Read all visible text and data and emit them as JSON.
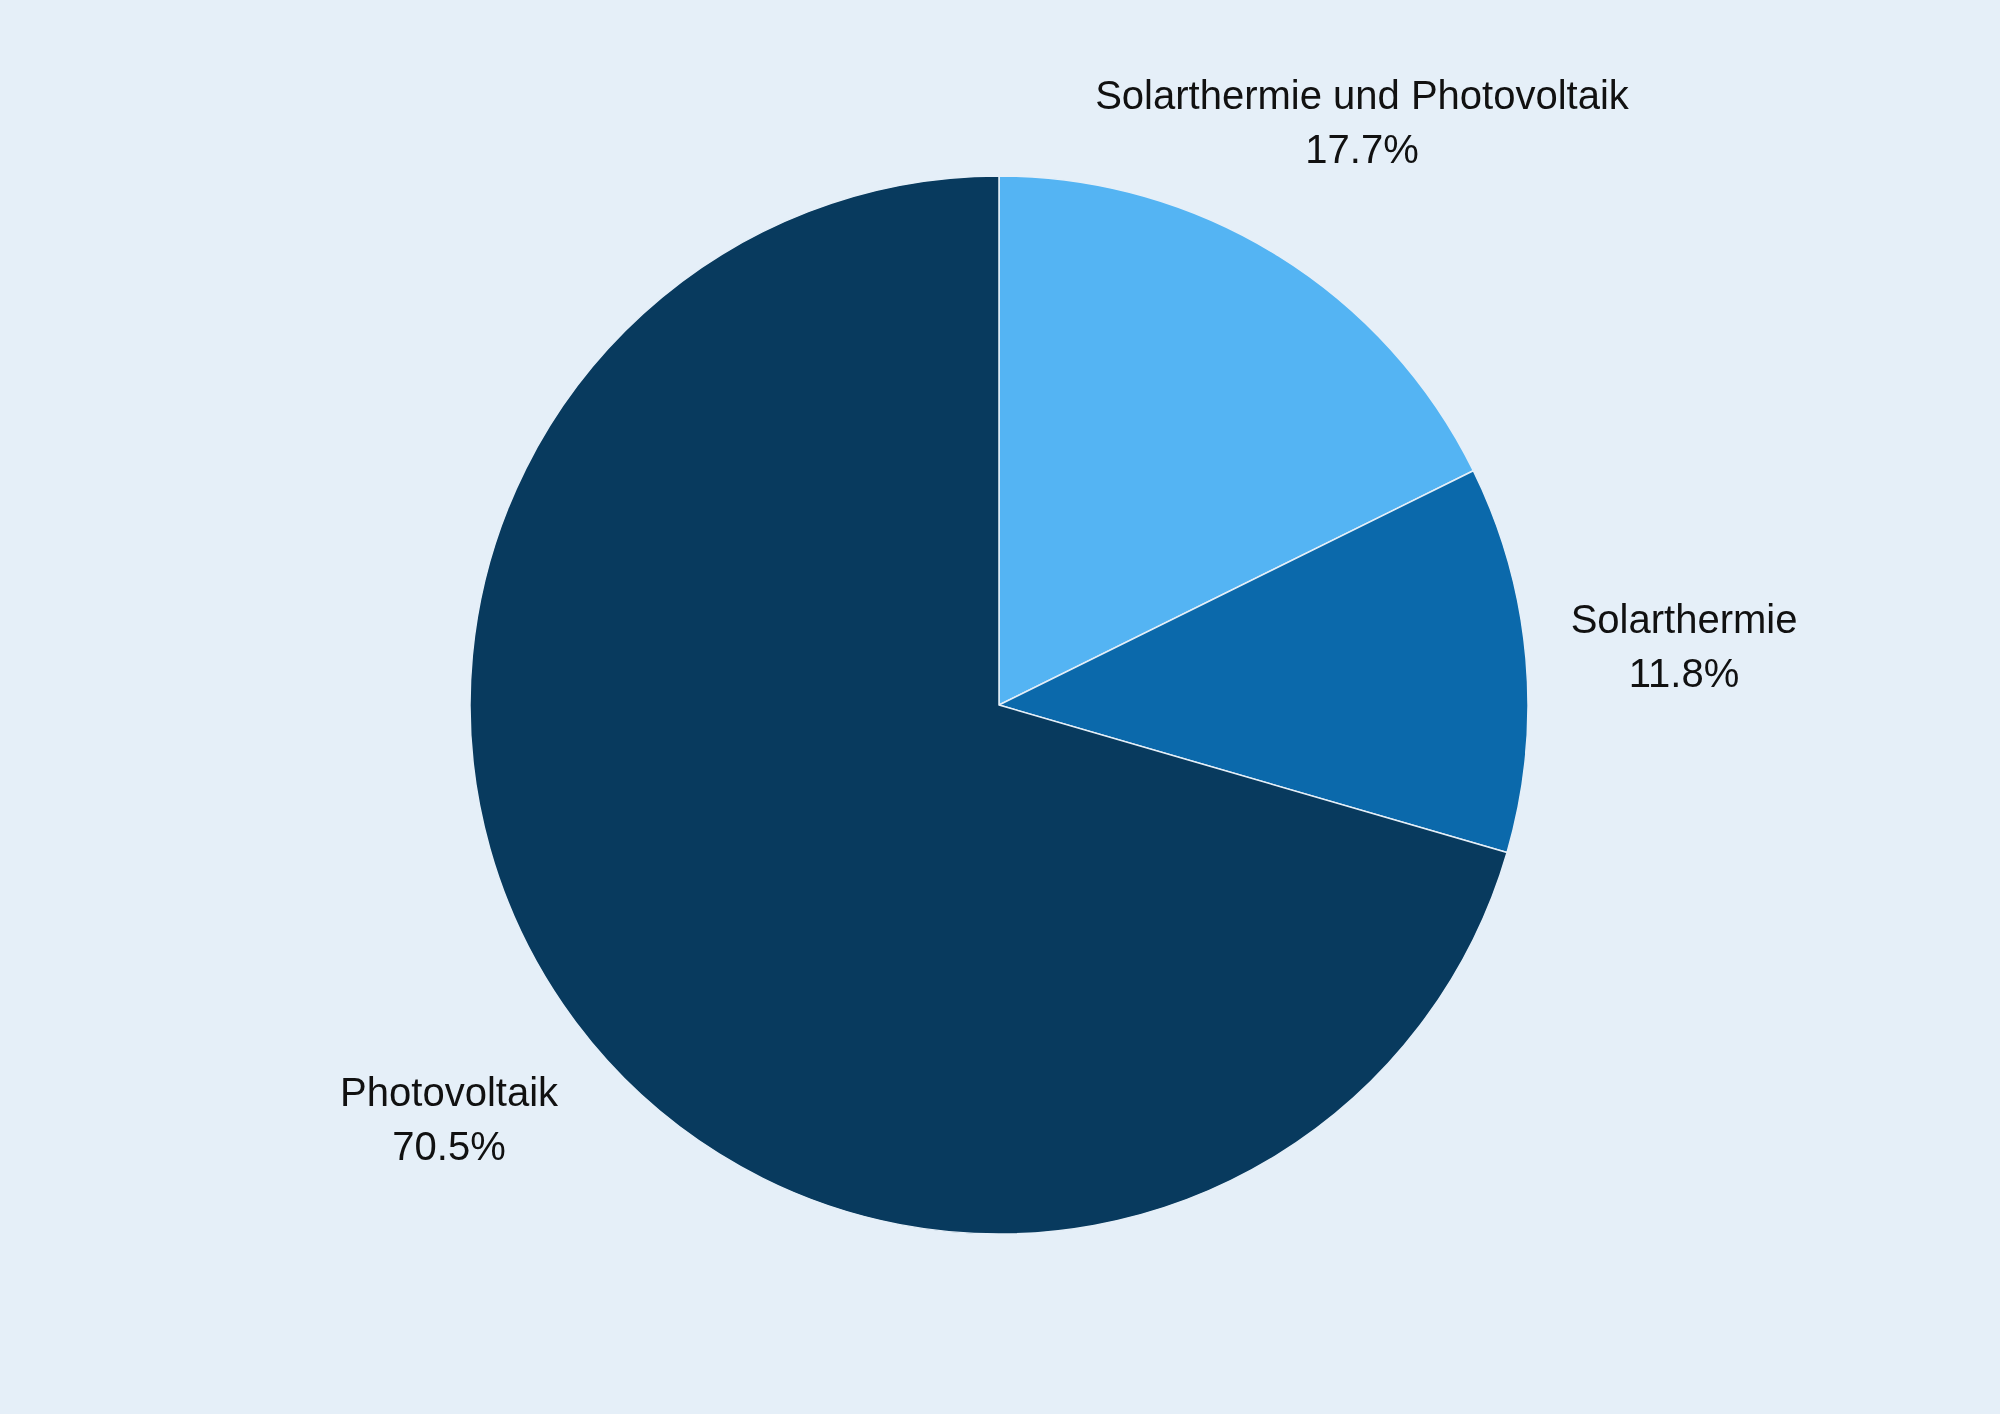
{
  "chart_data": {
    "type": "pie",
    "categories": [
      "Solarthermie und Photovoltaik",
      "Solarthermie",
      "Photovoltaik"
    ],
    "values": [
      17.7,
      11.8,
      70.5
    ],
    "colors": [
      "#54b4f3",
      "#0b69ab",
      "#083a5e"
    ],
    "value_labels": [
      "17.7%",
      "11.8%",
      "70.5%"
    ]
  }
}
